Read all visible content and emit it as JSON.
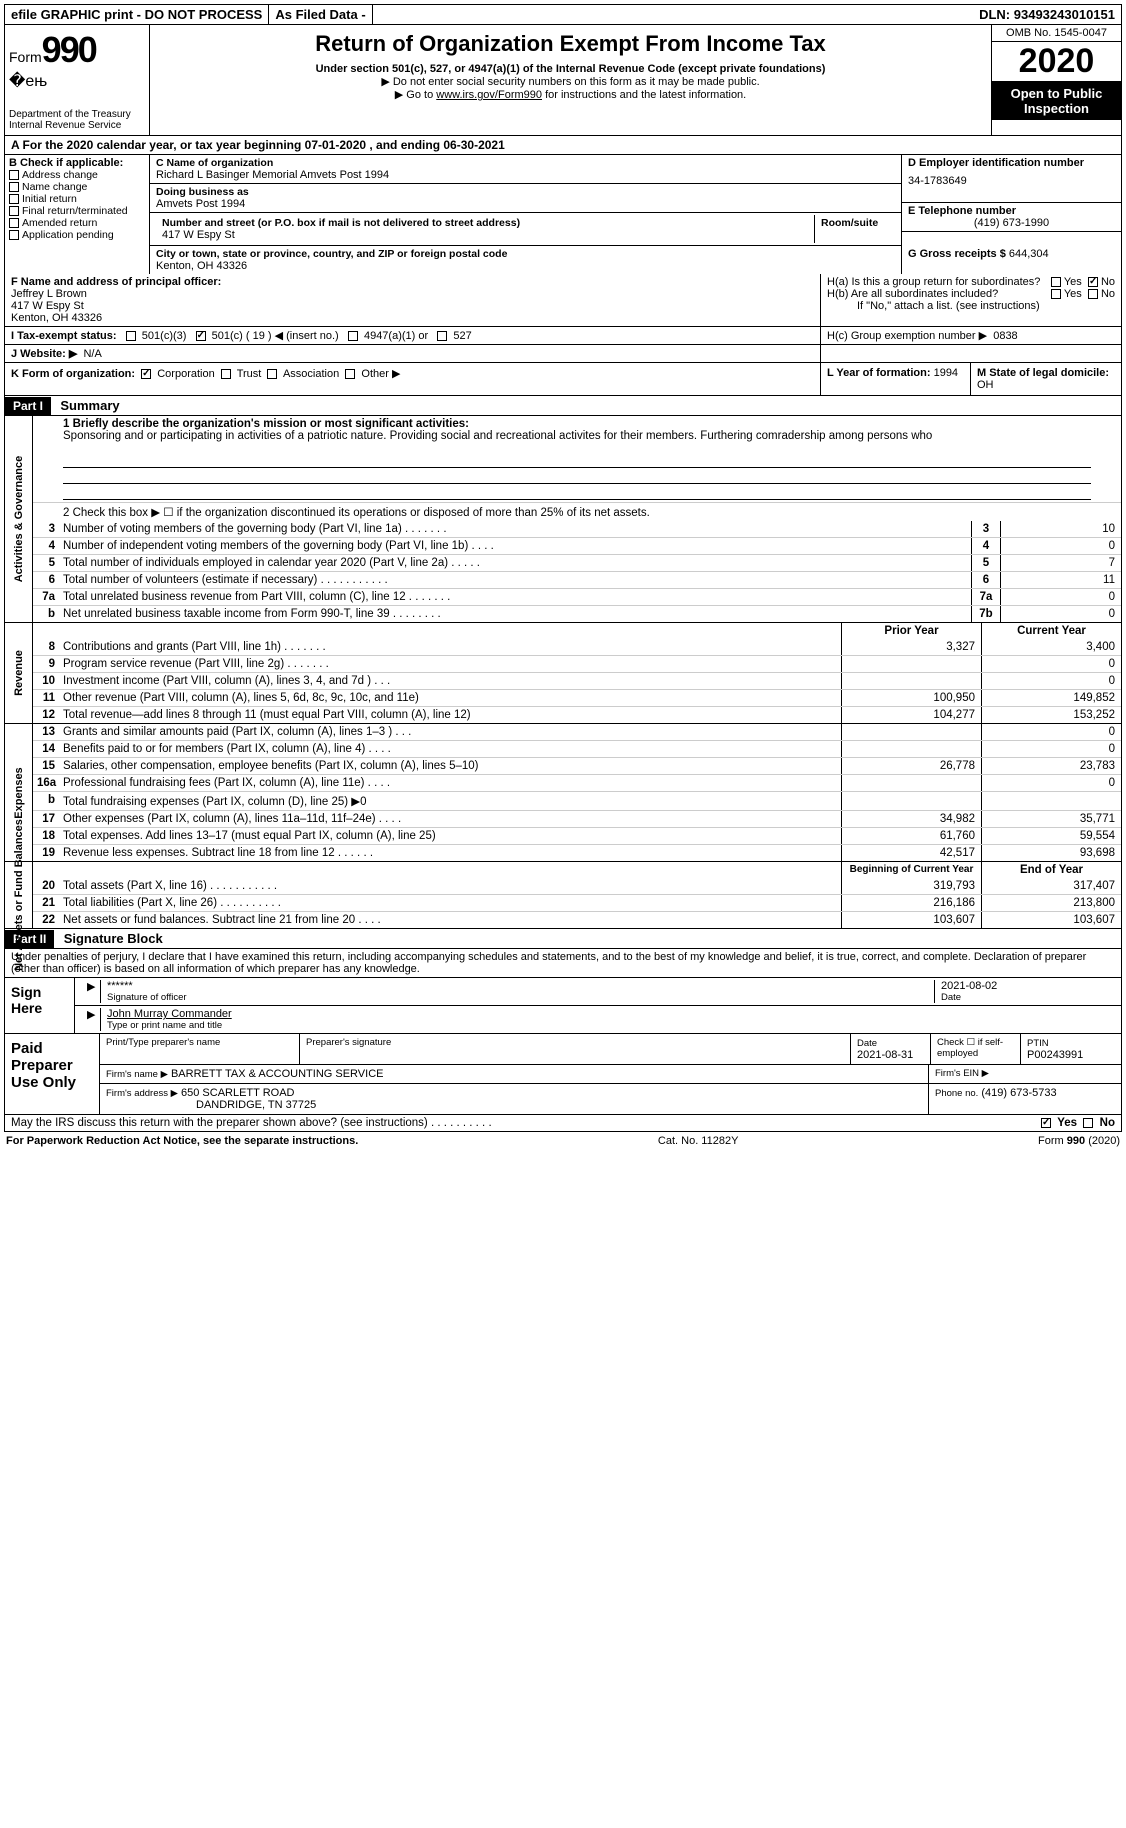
{
  "topbar": {
    "efile": "efile GRAPHIC print - DO NOT PROCESS",
    "asfiled": "As Filed Data -",
    "dln_label": "DLN:",
    "dln": "93493243010151"
  },
  "header": {
    "form_word": "Form",
    "form_num": "990",
    "dept": "Department of the Treasury\nInternal Revenue Service",
    "title": "Return of Organization Exempt From Income Tax",
    "sub": "Under section 501(c), 527, or 4947(a)(1) of the Internal Revenue Code (except private foundations)",
    "note1": "▶ Do not enter social security numbers on this form as it may be made public.",
    "note2_pre": "▶ Go to ",
    "note2_link": "www.irs.gov/Form990",
    "note2_post": " for instructions and the latest information.",
    "omb": "OMB No. 1545-0047",
    "year": "2020",
    "open": "Open to Public Inspection"
  },
  "rowA": "A   For the 2020 calendar year, or tax year beginning 07-01-2020   , and ending 06-30-2021",
  "B": {
    "hdr": "B Check if applicable:",
    "items": [
      "Address change",
      "Name change",
      "Initial return",
      "Final return/terminated",
      "Amended return",
      "Application pending"
    ]
  },
  "C": {
    "name_lbl": "C Name of organization",
    "name": "Richard L Basinger Memorial Amvets Post 1994",
    "dba_lbl": "Doing business as",
    "dba": "Amvets Post 1994",
    "street_lbl": "Number and street (or P.O. box if mail is not delivered to street address)",
    "room_lbl": "Room/suite",
    "street": "417 W Espy St",
    "city_lbl": "City or town, state or province, country, and ZIP or foreign postal code",
    "city": "Kenton, OH  43326"
  },
  "D": {
    "ein_lbl": "D Employer identification number",
    "ein": "34-1783649",
    "tel_lbl": "E Telephone number",
    "tel": "(419) 673-1990",
    "gross_lbl": "G Gross receipts $",
    "gross": "644,304"
  },
  "F": {
    "lbl": "F  Name and address of principal officer:",
    "name": "Jeffrey L Brown",
    "street": "417 W Espy St",
    "city": "Kenton, OH  43326"
  },
  "H": {
    "a": "H(a)  Is this a group return for subordinates?",
    "b": "H(b)  Are all subordinates included?",
    "b_note": "If \"No,\" attach a list. (see instructions)",
    "c_lbl": "H(c)  Group exemption number ▶",
    "c_val": "0838",
    "yes": "Yes",
    "no": "No"
  },
  "I": {
    "lbl": "I   Tax-exempt status:",
    "opts": [
      "501(c)(3)",
      "501(c) ( 19 ) ◀ (insert no.)",
      "4947(a)(1) or",
      "527"
    ]
  },
  "J": {
    "lbl": "J   Website: ▶",
    "val": "N/A"
  },
  "K": {
    "lbl": "K Form of organization:",
    "opts": [
      "Corporation",
      "Trust",
      "Association",
      "Other ▶"
    ]
  },
  "L": {
    "lbl": "L Year of formation:",
    "val": "1994"
  },
  "M": {
    "lbl": "M State of legal domicile:",
    "val": "OH"
  },
  "part1": {
    "hdr": "Part I",
    "title": "Summary"
  },
  "mission_lbl": "1  Briefly describe the organization's mission or most significant activities:",
  "mission": "Sponsoring and or participating in activities of a patriotic nature. Providing social and recreational activites for their members. Furthering comradership among persons who",
  "line2": "2   Check this box ▶ ☐ if the organization discontinued its operations or disposed of more than 25% of its net assets.",
  "gov_lines": [
    {
      "n": "3",
      "t": "Number of voting members of the governing body (Part VI, line 1a)  .    .    .    .    .    .    .",
      "b": "3",
      "v": "10"
    },
    {
      "n": "4",
      "t": "Number of independent voting members of the governing body (Part VI, line 1b)  .    .    .    .",
      "b": "4",
      "v": "0"
    },
    {
      "n": "5",
      "t": "Total number of individuals employed in calendar year 2020 (Part V, line 2a)  .    .    .    .    .",
      "b": "5",
      "v": "7"
    },
    {
      "n": "6",
      "t": "Total number of volunteers (estimate if necessary)  .    .    .    .    .    .    .    .    .    .    .",
      "b": "6",
      "v": "11"
    },
    {
      "n": "7a",
      "t": "Total unrelated business revenue from Part VIII, column (C), line 12  .    .    .    .    .    .    .",
      "b": "7a",
      "v": "0"
    },
    {
      "n": "b",
      "t": "Net unrelated business taxable income from Form 990-T, line 39  .    .    .    .    .    .    .    .",
      "b": "7b",
      "v": "0"
    }
  ],
  "colhdrs": {
    "prior": "Prior Year",
    "current": "Current Year"
  },
  "rev_lines": [
    {
      "n": "8",
      "t": "Contributions and grants (Part VIII, line 1h)  .    .    .    .    .    .    .",
      "p": "3,327",
      "c": "3,400"
    },
    {
      "n": "9",
      "t": "Program service revenue (Part VIII, line 2g)  .    .    .    .    .    .    .",
      "p": "",
      "c": "0"
    },
    {
      "n": "10",
      "t": "Investment income (Part VIII, column (A), lines 3, 4, and 7d )  .    .    .",
      "p": "",
      "c": "0"
    },
    {
      "n": "11",
      "t": "Other revenue (Part VIII, column (A), lines 5, 6d, 8c, 9c, 10c, and 11e)",
      "p": "100,950",
      "c": "149,852"
    },
    {
      "n": "12",
      "t": "Total revenue—add lines 8 through 11 (must equal Part VIII, column (A), line 12)",
      "p": "104,277",
      "c": "153,252"
    }
  ],
  "exp_lines": [
    {
      "n": "13",
      "t": "Grants and similar amounts paid (Part IX, column (A), lines 1–3 )  .    .    .",
      "p": "",
      "c": "0"
    },
    {
      "n": "14",
      "t": "Benefits paid to or for members (Part IX, column (A), line 4)  .    .    .    .",
      "p": "",
      "c": "0"
    },
    {
      "n": "15",
      "t": "Salaries, other compensation, employee benefits (Part IX, column (A), lines 5–10)",
      "p": "26,778",
      "c": "23,783"
    },
    {
      "n": "16a",
      "t": "Professional fundraising fees (Part IX, column (A), line 11e)  .    .    .    .",
      "p": "",
      "c": "0"
    },
    {
      "n": "b",
      "t": "Total fundraising expenses (Part IX, column (D), line 25) ▶0",
      "p": "",
      "c": ""
    },
    {
      "n": "17",
      "t": "Other expenses (Part IX, column (A), lines 11a–11d, 11f–24e)  .    .    .    .",
      "p": "34,982",
      "c": "35,771"
    },
    {
      "n": "18",
      "t": "Total expenses. Add lines 13–17 (must equal Part IX, column (A), line 25)",
      "p": "61,760",
      "c": "59,554"
    },
    {
      "n": "19",
      "t": "Revenue less expenses. Subtract line 18 from line 12  .    .    .    .    .    .",
      "p": "42,517",
      "c": "93,698"
    }
  ],
  "na_hdrs": {
    "beg": "Beginning of Current Year",
    "end": "End of Year"
  },
  "na_lines": [
    {
      "n": "20",
      "t": "Total assets (Part X, line 16)  .    .    .    .    .    .    .    .    .    .    .",
      "p": "319,793",
      "c": "317,407"
    },
    {
      "n": "21",
      "t": "Total liabilities (Part X, line 26)  .    .    .    .    .    .    .    .    .    .",
      "p": "216,186",
      "c": "213,800"
    },
    {
      "n": "22",
      "t": "Net assets or fund balances. Subtract line 21 from line 20  .    .    .    .",
      "p": "103,607",
      "c": "103,607"
    }
  ],
  "part2": {
    "hdr": "Part II",
    "title": "Signature Block"
  },
  "penalties": "Under penalties of perjury, I declare that I have examined this return, including accompanying schedules and statements, and to the best of my knowledge and belief, it is true, correct, and complete. Declaration of preparer (other than officer) is based on all information of which preparer has any knowledge.",
  "sign": {
    "lab": "Sign Here",
    "stars": "******",
    "sig_lbl": "Signature of officer",
    "date": "2021-08-02",
    "date_lbl": "Date",
    "name": "John Murray Commander",
    "name_lbl": "Type or print name and title"
  },
  "prep": {
    "lab": "Paid Preparer Use Only",
    "r1": {
      "a": "Print/Type preparer's name",
      "b": "Preparer's signature",
      "c": "Date",
      "c2": "2021-08-31",
      "d": "Check ☐ if self-employed",
      "e": "PTIN",
      "e2": "P00243991"
    },
    "r2": {
      "a": "Firm's name    ▶",
      "a2": "BARRETT TAX & ACCOUNTING SERVICE",
      "b": "Firm's EIN ▶"
    },
    "r3": {
      "a": "Firm's address ▶",
      "a2": "650 SCARLETT ROAD",
      "a3": "DANDRIDGE, TN  37725",
      "b": "Phone no.",
      "b2": "(419) 673-5733"
    }
  },
  "discuss": "May the IRS discuss this return with the preparer shown above? (see instructions)  .    .    .    .    .    .    .    .    .    .",
  "footer": {
    "l": "For Paperwork Reduction Act Notice, see the separate instructions.",
    "m": "Cat. No. 11282Y",
    "r": "Form 990 (2020)"
  }
}
